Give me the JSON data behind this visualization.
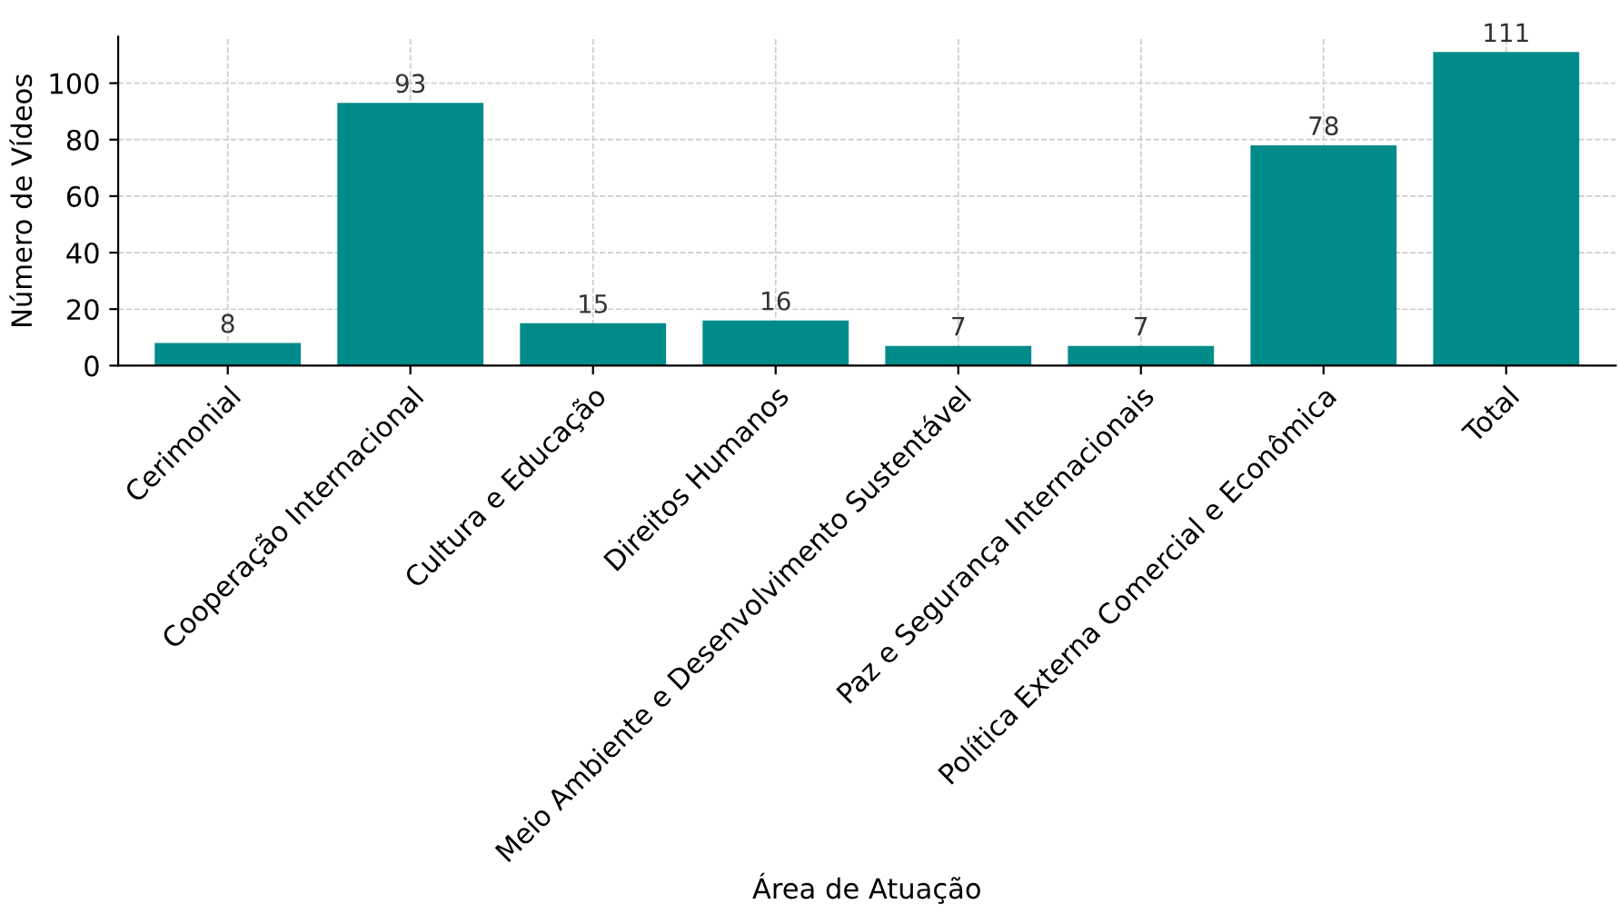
{
  "chart_data": {
    "type": "bar",
    "xlabel": "Área de Atuação",
    "ylabel": "Número de Vídeos",
    "categories": [
      "Cerimonial",
      "Cooperação Internacional",
      "Cultura e Educação",
      "Direitos Humanos",
      "Meio Ambiente e Desenvolvimento Sustentável",
      "Paz e Segurança Internacionais",
      "Política Externa Comercial e Econômica",
      "Total"
    ],
    "values": [
      8,
      93,
      15,
      16,
      7,
      7,
      78,
      111
    ],
    "color": "#008b8b",
    "ylim": [
      0,
      116.5
    ],
    "yticks": [
      0,
      20,
      40,
      60,
      80,
      100
    ],
    "grid": true,
    "data_labels": true
  }
}
